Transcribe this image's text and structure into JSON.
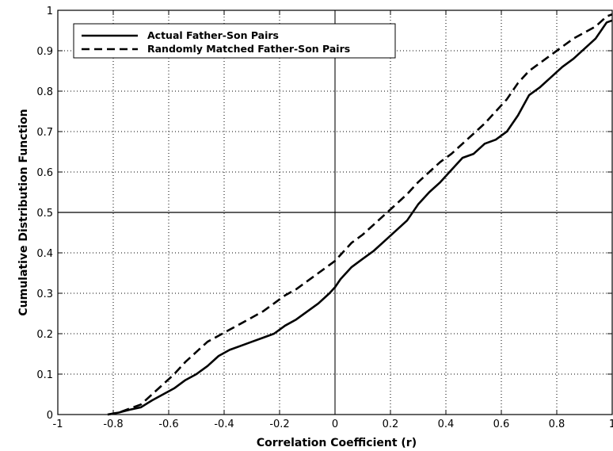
{
  "chart_data": {
    "type": "line",
    "title": "",
    "xlabel": "Correlation Coefficient (r)",
    "ylabel": "Cumulative Distribution Function",
    "xlim": [
      -1,
      1
    ],
    "ylim": [
      0,
      1
    ],
    "xticks": [
      "-1",
      "-0.8",
      "-0.6",
      "-0.4",
      "-0.2",
      "0",
      "0.2",
      "0.4",
      "0.6",
      "0.8",
      "1"
    ],
    "yticks": [
      "0",
      "0.1",
      "0.2",
      "0.3",
      "0.4",
      "0.5",
      "0.6",
      "0.7",
      "0.8",
      "0.9",
      "1"
    ],
    "grid": true,
    "legend_position": "top-left",
    "reference_lines": {
      "vertical_x": 0,
      "horizontal_y": 0.5
    },
    "series": [
      {
        "name": "Actual Father-Son Pairs",
        "style": "solid",
        "color": "#000000",
        "x": [
          -0.82,
          -0.78,
          -0.74,
          -0.7,
          -0.66,
          -0.62,
          -0.58,
          -0.54,
          -0.5,
          -0.46,
          -0.42,
          -0.38,
          -0.34,
          -0.3,
          -0.26,
          -0.22,
          -0.18,
          -0.14,
          -0.1,
          -0.06,
          -0.02,
          0.0,
          0.02,
          0.06,
          0.1,
          0.14,
          0.18,
          0.22,
          0.26,
          0.3,
          0.34,
          0.38,
          0.42,
          0.46,
          0.5,
          0.54,
          0.58,
          0.62,
          0.66,
          0.7,
          0.74,
          0.78,
          0.82,
          0.86,
          0.9,
          0.94,
          0.98,
          1.0
        ],
        "y": [
          0.0,
          0.005,
          0.012,
          0.018,
          0.035,
          0.05,
          0.065,
          0.085,
          0.1,
          0.12,
          0.145,
          0.16,
          0.17,
          0.18,
          0.19,
          0.2,
          0.22,
          0.235,
          0.255,
          0.275,
          0.3,
          0.315,
          0.335,
          0.365,
          0.385,
          0.405,
          0.43,
          0.455,
          0.48,
          0.52,
          0.55,
          0.575,
          0.605,
          0.635,
          0.645,
          0.67,
          0.68,
          0.7,
          0.74,
          0.79,
          0.81,
          0.835,
          0.86,
          0.88,
          0.905,
          0.93,
          0.97,
          0.975
        ]
      },
      {
        "name": "Randomly Matched Father-Son Pairs",
        "style": "dashed",
        "color": "#000000",
        "x": [
          -0.82,
          -0.78,
          -0.74,
          -0.7,
          -0.66,
          -0.62,
          -0.58,
          -0.54,
          -0.5,
          -0.46,
          -0.42,
          -0.38,
          -0.34,
          -0.3,
          -0.26,
          -0.22,
          -0.18,
          -0.14,
          -0.1,
          -0.06,
          -0.02,
          0.0,
          0.02,
          0.06,
          0.1,
          0.14,
          0.18,
          0.22,
          0.26,
          0.3,
          0.34,
          0.38,
          0.42,
          0.46,
          0.5,
          0.54,
          0.58,
          0.62,
          0.66,
          0.7,
          0.74,
          0.78,
          0.82,
          0.86,
          0.9,
          0.94,
          0.98,
          1.0
        ],
        "y": [
          0.0,
          0.005,
          0.015,
          0.025,
          0.05,
          0.075,
          0.1,
          0.13,
          0.155,
          0.18,
          0.195,
          0.21,
          0.225,
          0.24,
          0.255,
          0.275,
          0.295,
          0.31,
          0.33,
          0.35,
          0.37,
          0.38,
          0.395,
          0.425,
          0.445,
          0.47,
          0.495,
          0.52,
          0.545,
          0.575,
          0.6,
          0.625,
          0.645,
          0.67,
          0.695,
          0.72,
          0.75,
          0.78,
          0.82,
          0.85,
          0.87,
          0.89,
          0.91,
          0.93,
          0.945,
          0.96,
          0.985,
          0.99
        ]
      }
    ]
  }
}
